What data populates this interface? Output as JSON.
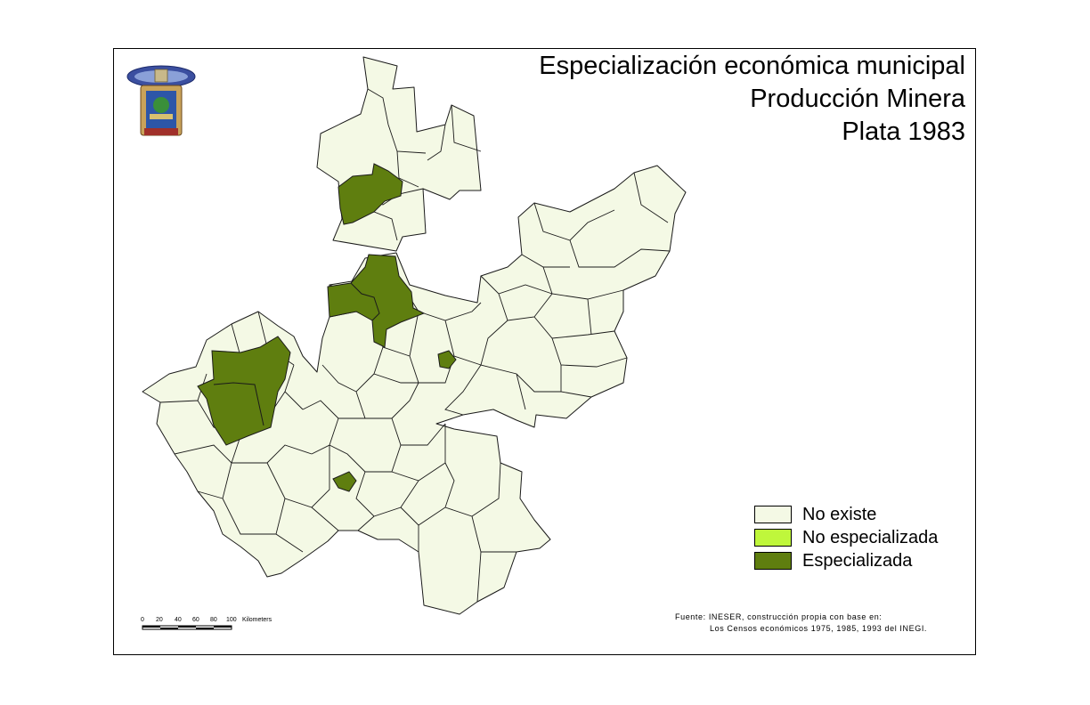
{
  "title": {
    "line1": "Especialización económica municipal",
    "line2": "Producción Minera",
    "line3": "Plata 1983"
  },
  "legend": {
    "items": [
      {
        "label": "No existe",
        "color": "#f4f9e5"
      },
      {
        "label": "No especializada",
        "color": "#bff73b"
      },
      {
        "label": "Especializada",
        "color": "#5f7e0f"
      }
    ]
  },
  "scale_bar": {
    "ticks": [
      "0",
      "20",
      "40",
      "60",
      "80",
      "100"
    ],
    "unit": "Kilometers"
  },
  "source": {
    "line1": "Fuente: INESER, construcción propia con base en:",
    "line2": "Los Censos económicos 1975, 1985, 1993 del INEGI."
  },
  "colors": {
    "base": "#f4f9e5",
    "specialized": "#5f7e0f",
    "outline": "#1a1a1a"
  },
  "seal": {
    "icon": "university-seal-icon"
  }
}
